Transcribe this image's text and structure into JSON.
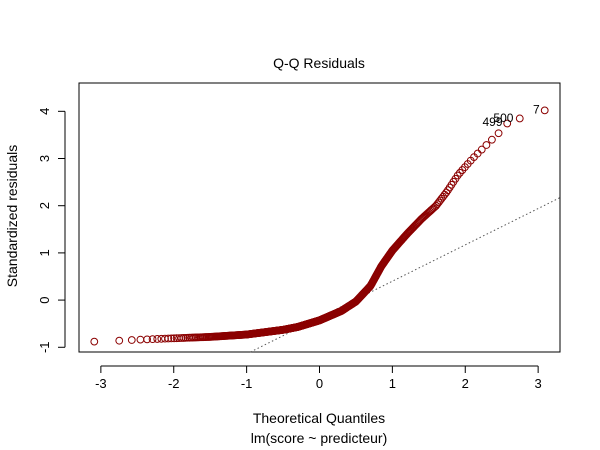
{
  "chart_data": {
    "type": "scatter",
    "title": "Q-Q Residuals",
    "xlabel": "Theoretical Quantiles",
    "subtitle": "lm(score ~ predicteur)",
    "ylabel": "Standardized residuals",
    "xlim": [
      -3.3,
      3.3
    ],
    "ylim": [
      -1.1,
      4.6
    ],
    "xticks": [
      -3,
      -2,
      -1,
      0,
      1,
      2,
      3
    ],
    "yticks": [
      -1,
      0,
      1,
      2,
      3,
      4
    ],
    "xtick_labels": [
      "-3",
      "-2",
      "-1",
      "0",
      "1",
      "2",
      "3"
    ],
    "ytick_labels": [
      "-1",
      "0",
      "1",
      "2",
      "3",
      "4"
    ],
    "reference_line": {
      "slope": 0.77,
      "intercept": -0.37,
      "style": "dotted"
    },
    "outlier_labels": [
      {
        "label": "7",
        "x": 3.09,
        "y": 4.02
      },
      {
        "label": "500",
        "x": 2.73,
        "y": 3.84
      },
      {
        "label": "499",
        "x": 2.58,
        "y": 3.75
      }
    ],
    "n_points": 500,
    "quantile_curve": [
      [
        -3.09,
        -0.88
      ],
      [
        -2.75,
        -0.86
      ],
      [
        -2.5,
        -0.84
      ],
      [
        -2.0,
        -0.81
      ],
      [
        -1.5,
        -0.78
      ],
      [
        -1.0,
        -0.73
      ],
      [
        -0.5,
        -0.63
      ],
      [
        -0.3,
        -0.57
      ],
      [
        0.0,
        -0.43
      ],
      [
        0.3,
        -0.23
      ],
      [
        0.5,
        -0.03
      ],
      [
        0.7,
        0.3
      ],
      [
        0.85,
        0.72
      ],
      [
        1.0,
        1.05
      ],
      [
        1.2,
        1.4
      ],
      [
        1.4,
        1.72
      ],
      [
        1.6,
        2.0
      ],
      [
        1.75,
        2.3
      ],
      [
        1.9,
        2.65
      ],
      [
        2.1,
        3.0
      ],
      [
        2.3,
        3.3
      ],
      [
        2.5,
        3.6
      ],
      [
        2.58,
        3.75
      ],
      [
        2.73,
        3.84
      ],
      [
        3.09,
        4.02
      ]
    ],
    "colors": {
      "points": "#8b0000",
      "reference_line": "#555555",
      "axes": "#000000"
    }
  }
}
